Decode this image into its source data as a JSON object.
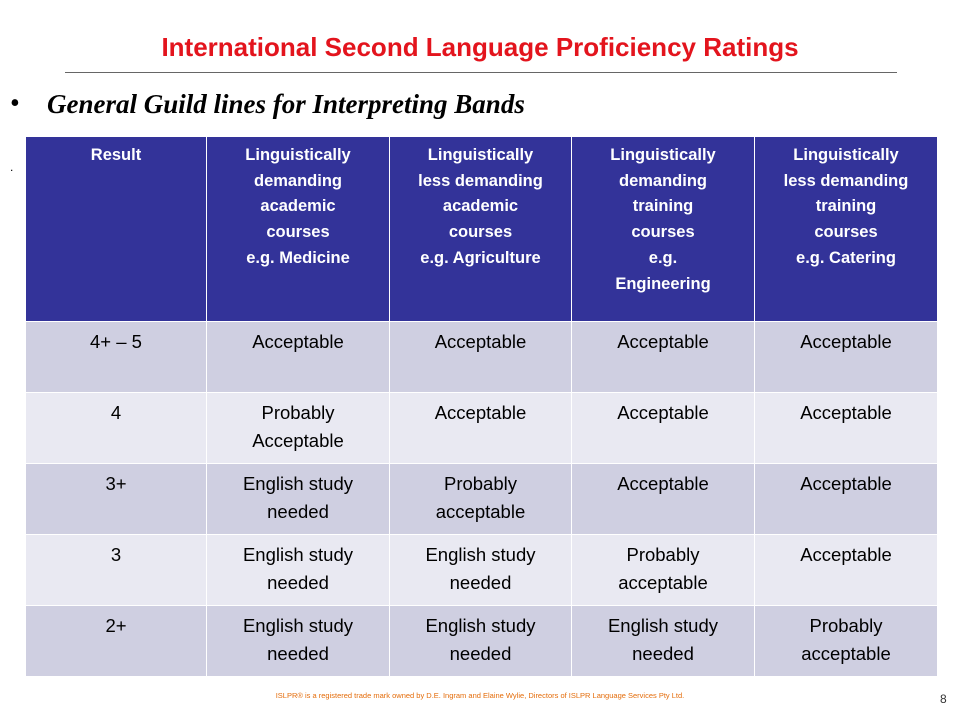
{
  "title": "International Second Language Proficiency Ratings",
  "bullet": "General Guild lines for Interpreting Bands",
  "marker": ".",
  "table": {
    "header": [
      [
        "Result"
      ],
      [
        "Linguistically",
        "demanding",
        "academic",
        "courses",
        "e.g. Medicine"
      ],
      [
        "Linguistically",
        "less demanding",
        "academic",
        "courses",
        "e.g. Agriculture"
      ],
      [
        "Linguistically",
        "demanding",
        "training",
        "courses",
        "e.g.",
        "Engineering"
      ],
      [
        "Linguistically",
        "less demanding",
        "training",
        "courses",
        "e.g. Catering"
      ]
    ],
    "rows": [
      [
        [
          "4+ – 5"
        ],
        [
          "Acceptable"
        ],
        [
          "Acceptable"
        ],
        [
          "Acceptable"
        ],
        [
          "Acceptable"
        ]
      ],
      [
        [
          "4"
        ],
        [
          "Probably",
          "Acceptable"
        ],
        [
          "Acceptable"
        ],
        [
          "Acceptable"
        ],
        [
          "Acceptable"
        ]
      ],
      [
        [
          "3+"
        ],
        [
          "English study",
          "needed"
        ],
        [
          "Probably",
          "acceptable"
        ],
        [
          "Acceptable"
        ],
        [
          "Acceptable"
        ]
      ],
      [
        [
          "3"
        ],
        [
          "English study",
          "needed"
        ],
        [
          "English study",
          "needed"
        ],
        [
          "Probably",
          "acceptable"
        ],
        [
          "Acceptable"
        ]
      ],
      [
        [
          "2+"
        ],
        [
          "English study",
          "needed"
        ],
        [
          "English study",
          "needed"
        ],
        [
          "English study",
          "needed"
        ],
        [
          "Probably",
          "acceptable"
        ]
      ]
    ]
  },
  "footer": "ISLPR® is a registered trade mark owned by D.E. Ingram and Elaine Wylie, Directors of ISLPR Language Services Pty Ltd.",
  "page_number": "8"
}
